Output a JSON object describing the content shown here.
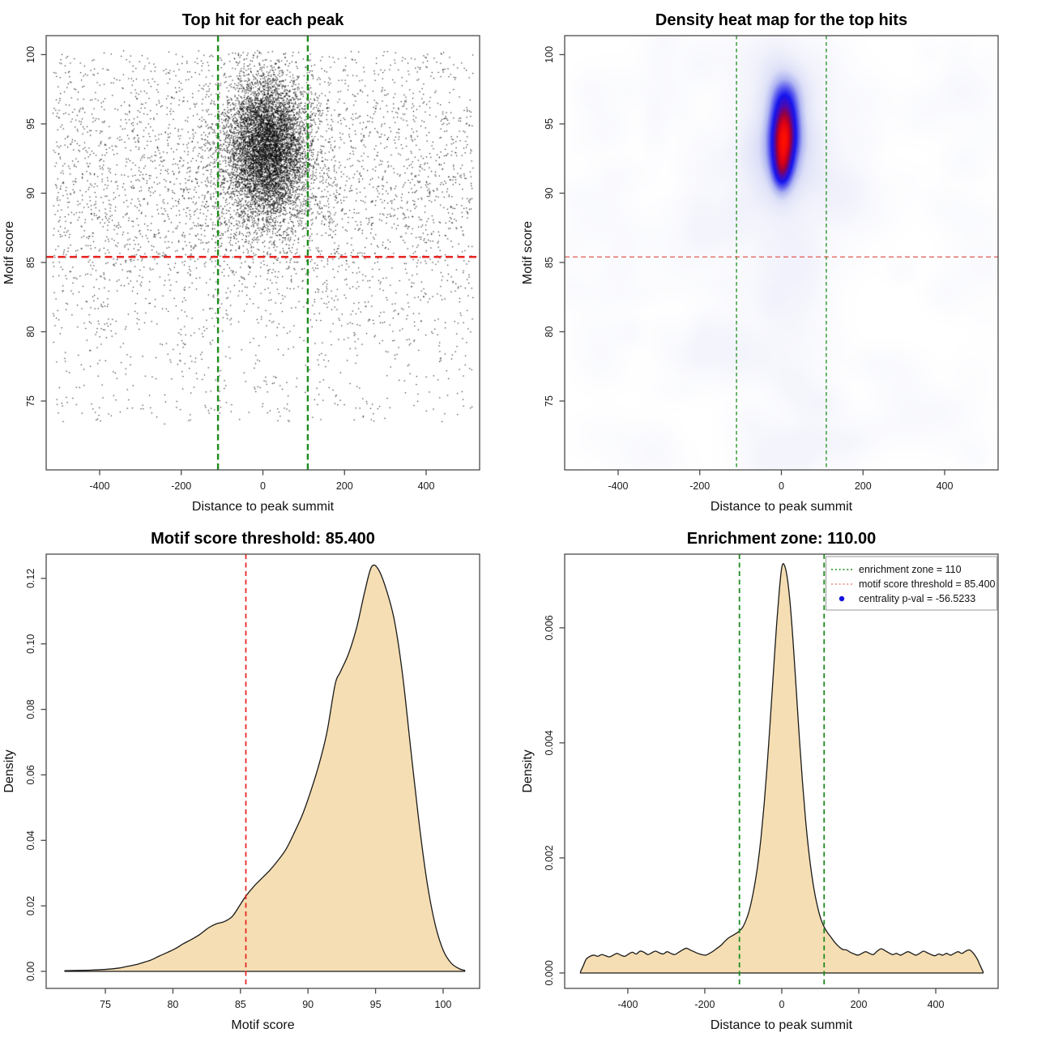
{
  "figure": {
    "background": "#ffffff"
  },
  "chart_data": [
    {
      "id": "scatter",
      "type": "scatter",
      "title": "Top hit for each peak",
      "xlabel": "Distance to peak summit",
      "ylabel": "Motif score",
      "xlim": [
        -531,
        531
      ],
      "ylim": [
        70.03,
        101.37
      ],
      "x_ticks": {
        "values": [
          -400,
          -200,
          0,
          200,
          400
        ],
        "labels": [
          "-400",
          "-200",
          "0",
          "200",
          "400"
        ]
      },
      "y_ticks": {
        "values": [
          75,
          80,
          85,
          90,
          95,
          100
        ],
        "labels": [
          "75",
          "80",
          "85",
          "90",
          "95",
          "100"
        ]
      },
      "vlines": [
        {
          "v": -110,
          "color": "#1e8c1e",
          "width": 2.4,
          "dash": "7.5 4.5"
        },
        {
          "v": 110,
          "color": "#1e8c1e",
          "width": 2.4,
          "dash": "7.5 4.5"
        }
      ],
      "hlines": [
        {
          "v": 85.4,
          "color": "#e8201c",
          "width": 2.6,
          "dash": "9 5.5"
        }
      ],
      "points": {
        "seed": 20240917,
        "dot_color": "#000000",
        "dot_size": 1.2,
        "dot_alpha": 0.9,
        "clusters": [
          {
            "n": 5800,
            "x_mean": 10,
            "x_sd": 48,
            "y_mean": 93.5,
            "y_sd": 2.5
          },
          {
            "n": 1500,
            "x_mean": 5,
            "x_sd": 85,
            "y_mean": 91.0,
            "y_sd": 3.2
          }
        ],
        "background": {
          "n": 4000,
          "x_range": [
            -515,
            515
          ],
          "gauss": {
            "mean": 91.0,
            "sd": 5.5,
            "frac": 0.7
          },
          "uniform": [
            73.5,
            100.2
          ]
        },
        "y_clip": [
          73.2,
          100.3
        ]
      }
    },
    {
      "id": "heatmap",
      "type": "heatmap",
      "title": "Density heat map for the top hits",
      "xlabel": "Distance to peak summit",
      "ylabel": "Motif score",
      "xlim": [
        -531,
        531
      ],
      "ylim": [
        70.03,
        101.37
      ],
      "x_ticks": {
        "values": [
          -400,
          -200,
          0,
          200,
          400
        ],
        "labels": [
          "-400",
          "-200",
          "0",
          "200",
          "400"
        ]
      },
      "y_ticks": {
        "values": [
          75,
          80,
          85,
          90,
          95,
          100
        ],
        "labels": [
          "75",
          "80",
          "85",
          "90",
          "95",
          "100"
        ]
      },
      "vlines": [
        {
          "v": -110,
          "color": "#1e8c1e",
          "width": 1.3,
          "dash": "4.5 3.5"
        },
        {
          "v": 110,
          "color": "#1e8c1e",
          "width": 1.3,
          "dash": "4.5 3.5"
        }
      ],
      "hlines": [
        {
          "v": 85.4,
          "color": "#df5a50",
          "width": 1.3,
          "dash": "6 4"
        }
      ],
      "density_model": {
        "seed": 77,
        "gamma": 0.85,
        "blobs": [
          {
            "x": 7,
            "y": 95.0,
            "sx": 26,
            "sy": 1.6,
            "w": 1.0
          },
          {
            "x": 3,
            "y": 92.8,
            "sx": 24,
            "sy": 1.5,
            "w": 0.8
          },
          {
            "x": 0,
            "y": 91.3,
            "sx": 17,
            "sy": 1.1,
            "w": 0.5
          },
          {
            "x": 7,
            "y": 97.3,
            "sx": 30,
            "sy": 1.25,
            "w": 0.45
          },
          {
            "x": 5,
            "y": 94.0,
            "sx": 55,
            "sy": 2.8,
            "w": 0.3
          },
          {
            "x": 5,
            "y": 92.5,
            "sx": 95,
            "sy": 5.5,
            "w": 0.12
          },
          {
            "x": 0,
            "y": 86.5,
            "sx": 60,
            "sy": 2.5,
            "w": 0.06
          }
        ],
        "noise": {
          "n": 150,
          "w_range": [
            0.015,
            0.045
          ],
          "sd_range": [
            10,
            26
          ],
          "column": {
            "n": 25,
            "x_range": [
              -55,
              55
            ],
            "w": 0.03,
            "sd_range": [
              14,
              30
            ]
          }
        },
        "ramp": [
          {
            "t": 0.0,
            "c": "#ffffff"
          },
          {
            "t": 0.13,
            "c": "#f0f1fb"
          },
          {
            "t": 0.28,
            "c": "#dcdff7"
          },
          {
            "t": 0.42,
            "c": "#aeb4f1"
          },
          {
            "t": 0.55,
            "c": "#5b5bee"
          },
          {
            "t": 0.66,
            "c": "#1414ee"
          },
          {
            "t": 0.77,
            "c": "#4a0ab4"
          },
          {
            "t": 0.86,
            "c": "#98003e"
          },
          {
            "t": 0.93,
            "c": "#de0015"
          },
          {
            "t": 1.0,
            "c": "#ff1000"
          }
        ]
      }
    },
    {
      "id": "score_density",
      "type": "area",
      "title": "Motif score threshold: 85.400",
      "xlabel": "Motif score",
      "ylabel": "Density",
      "xlim": [
        70.62,
        102.7
      ],
      "ylim": [
        -0.0052,
        0.1274
      ],
      "x_ticks": {
        "values": [
          75,
          80,
          85,
          90,
          95,
          100
        ],
        "labels": [
          "75",
          "80",
          "85",
          "90",
          "95",
          "100"
        ]
      },
      "y_ticks": {
        "values": [
          0,
          0.02,
          0.04,
          0.06,
          0.08,
          0.1,
          0.12
        ],
        "labels": [
          "0.00",
          "0.02",
          "0.04",
          "0.06",
          "0.08",
          "0.10",
          "0.12"
        ]
      },
      "vlines": [
        {
          "v": 85.4,
          "color": "#e8201c",
          "width": 1.7,
          "dash": "6 4.5"
        }
      ],
      "hlines": [],
      "fill": "#f5deb3",
      "stroke": "#1a1a1a",
      "curve": [
        [
          72,
          0.0002
        ],
        [
          73,
          0.0003
        ],
        [
          74,
          0.0004
        ],
        [
          75,
          0.0006
        ],
        [
          76,
          0.001
        ],
        [
          76.6,
          0.0015
        ],
        [
          77.2,
          0.002
        ],
        [
          77.8,
          0.0027
        ],
        [
          78.4,
          0.0035
        ],
        [
          79,
          0.0047
        ],
        [
          79.6,
          0.0058
        ],
        [
          80.2,
          0.007
        ],
        [
          80.8,
          0.0085
        ],
        [
          81.4,
          0.0098
        ],
        [
          82,
          0.0113
        ],
        [
          82.6,
          0.0132
        ],
        [
          83.2,
          0.0145
        ],
        [
          83.8,
          0.0152
        ],
        [
          84.4,
          0.0168
        ],
        [
          85,
          0.0205
        ],
        [
          85.4,
          0.023
        ],
        [
          86,
          0.026
        ],
        [
          86.6,
          0.0285
        ],
        [
          87.2,
          0.031
        ],
        [
          87.8,
          0.034
        ],
        [
          88.4,
          0.0375
        ],
        [
          89,
          0.0425
        ],
        [
          89.6,
          0.048
        ],
        [
          90.2,
          0.055
        ],
        [
          90.8,
          0.063
        ],
        [
          91.4,
          0.073
        ],
        [
          92,
          0.0875
        ],
        [
          92.4,
          0.0915
        ],
        [
          93,
          0.097
        ],
        [
          93.6,
          0.105
        ],
        [
          94.2,
          0.116
        ],
        [
          94.7,
          0.1235
        ],
        [
          95.2,
          0.1228
        ],
        [
          95.8,
          0.1165
        ],
        [
          96.4,
          0.107
        ],
        [
          97,
          0.0905
        ],
        [
          97.6,
          0.068
        ],
        [
          98.2,
          0.046
        ],
        [
          98.8,
          0.0275
        ],
        [
          99.4,
          0.0145
        ],
        [
          100,
          0.0065
        ],
        [
          100.6,
          0.0025
        ],
        [
          101.2,
          0.0008
        ],
        [
          101.6,
          0.0003
        ]
      ]
    },
    {
      "id": "distance_density",
      "type": "area",
      "title": "Enrichment zone: 110.00",
      "xlabel": "Distance to peak summit",
      "ylabel": "Density",
      "xlim": [
        -564,
        562
      ],
      "ylim": [
        -0.000268,
        0.00728
      ],
      "x_ticks": {
        "values": [
          -400,
          -200,
          0,
          200,
          400
        ],
        "labels": [
          "-400",
          "-200",
          "0",
          "200",
          "400"
        ]
      },
      "y_ticks": {
        "values": [
          0,
          0.002,
          0.004,
          0.006
        ],
        "labels": [
          "0.000",
          "0.002",
          "0.004",
          "0.006"
        ]
      },
      "vlines": [
        {
          "v": -110,
          "color": "#1e8c1e",
          "width": 1.8,
          "dash": "6 4.5"
        },
        {
          "v": 110,
          "color": "#1e8c1e",
          "width": 1.8,
          "dash": "6 4.5"
        }
      ],
      "hlines": [],
      "fill": "#f5deb3",
      "stroke": "#1a1a1a",
      "curve": [
        [
          -523,
          2e-05
        ],
        [
          -516,
          0.00012
        ],
        [
          -508,
          0.00024
        ],
        [
          -498,
          0.00029
        ],
        [
          -488,
          0.00031
        ],
        [
          -478,
          0.00029
        ],
        [
          -468,
          0.00032
        ],
        [
          -458,
          0.0003
        ],
        [
          -448,
          0.00028
        ],
        [
          -438,
          0.00031
        ],
        [
          -428,
          0.00034
        ],
        [
          -418,
          0.00031
        ],
        [
          -408,
          0.00029
        ],
        [
          -398,
          0.00033
        ],
        [
          -388,
          0.00036
        ],
        [
          -378,
          0.00033
        ],
        [
          -368,
          0.00038
        ],
        [
          -358,
          0.00036
        ],
        [
          -348,
          0.00032
        ],
        [
          -338,
          0.00035
        ],
        [
          -328,
          0.00038
        ],
        [
          -318,
          0.00035
        ],
        [
          -308,
          0.00033
        ],
        [
          -298,
          0.00037
        ],
        [
          -288,
          0.00034
        ],
        [
          -278,
          0.00032
        ],
        [
          -268,
          0.00036
        ],
        [
          -258,
          0.0004
        ],
        [
          -248,
          0.00043
        ],
        [
          -238,
          0.0004
        ],
        [
          -228,
          0.00037
        ],
        [
          -218,
          0.00034
        ],
        [
          -208,
          0.00032
        ],
        [
          -198,
          0.00031
        ],
        [
          -188,
          0.00034
        ],
        [
          -178,
          0.00038
        ],
        [
          -168,
          0.00043
        ],
        [
          -158,
          0.00048
        ],
        [
          -148,
          0.00055
        ],
        [
          -138,
          0.00061
        ],
        [
          -128,
          0.00065
        ],
        [
          -118,
          0.00069
        ],
        [
          -110,
          0.00073
        ],
        [
          -102,
          0.00079
        ],
        [
          -94,
          0.0009
        ],
        [
          -86,
          0.00105
        ],
        [
          -78,
          0.00127
        ],
        [
          -70,
          0.00155
        ],
        [
          -62,
          0.0019
        ],
        [
          -54,
          0.00235
        ],
        [
          -46,
          0.00292
        ],
        [
          -38,
          0.0036
        ],
        [
          -30,
          0.00438
        ],
        [
          -22,
          0.0052
        ],
        [
          -14,
          0.006
        ],
        [
          -6,
          0.00668
        ],
        [
          0,
          0.00705
        ],
        [
          6,
          0.0071
        ],
        [
          14,
          0.00688
        ],
        [
          22,
          0.0064
        ],
        [
          30,
          0.0057
        ],
        [
          38,
          0.00488
        ],
        [
          46,
          0.00405
        ],
        [
          54,
          0.0033
        ],
        [
          62,
          0.00265
        ],
        [
          70,
          0.00212
        ],
        [
          78,
          0.0017
        ],
        [
          86,
          0.00137
        ],
        [
          94,
          0.00112
        ],
        [
          102,
          0.00093
        ],
        [
          110,
          0.0008
        ],
        [
          118,
          0.00071
        ],
        [
          128,
          0.00062
        ],
        [
          138,
          0.00053
        ],
        [
          148,
          0.00046
        ],
        [
          158,
          0.00041
        ],
        [
          168,
          0.0004
        ],
        [
          178,
          0.00036
        ],
        [
          188,
          0.00033
        ],
        [
          198,
          0.00031
        ],
        [
          208,
          0.00034
        ],
        [
          218,
          0.00037
        ],
        [
          228,
          0.00034
        ],
        [
          238,
          0.00032
        ],
        [
          248,
          0.00038
        ],
        [
          258,
          0.00042
        ],
        [
          268,
          0.00039
        ],
        [
          278,
          0.00035
        ],
        [
          288,
          0.00032
        ],
        [
          298,
          0.00034
        ],
        [
          308,
          0.00031
        ],
        [
          318,
          0.00034
        ],
        [
          328,
          0.00037
        ],
        [
          338,
          0.00034
        ],
        [
          348,
          0.00031
        ],
        [
          358,
          0.00034
        ],
        [
          368,
          0.00038
        ],
        [
          378,
          0.00035
        ],
        [
          388,
          0.00032
        ],
        [
          398,
          0.0003
        ],
        [
          408,
          0.00033
        ],
        [
          418,
          0.00031
        ],
        [
          428,
          0.00034
        ],
        [
          438,
          0.00031
        ],
        [
          448,
          0.00034
        ],
        [
          458,
          0.00037
        ],
        [
          468,
          0.00034
        ],
        [
          478,
          0.00038
        ],
        [
          488,
          0.0004
        ],
        [
          498,
          0.00034
        ],
        [
          508,
          0.00024
        ],
        [
          516,
          0.00012
        ],
        [
          523,
          2e-05
        ]
      ],
      "legend": {
        "items": [
          {
            "label": "enrichment zone = 110",
            "marker": "dotted-line",
            "color": "#1e8c1e"
          },
          {
            "label": "motif score threshold = 85.400",
            "marker": "dotted-line",
            "color": "#ef8a80"
          },
          {
            "label": "centrality p-val = -56.5233",
            "marker": "dot",
            "color": "#1212e0"
          }
        ]
      }
    }
  ]
}
